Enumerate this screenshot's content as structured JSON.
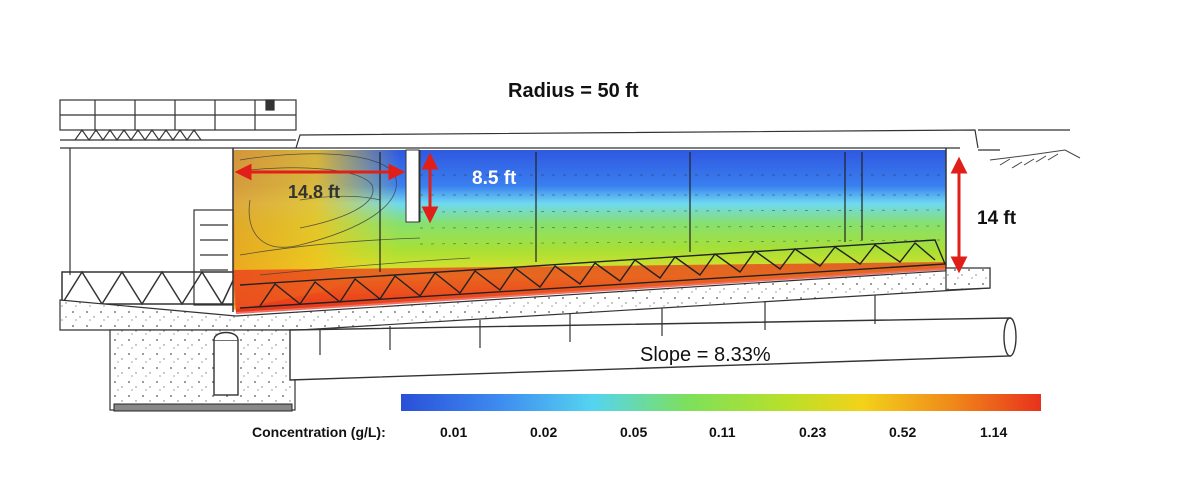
{
  "title": "Radius = 50 ft",
  "dimensions": {
    "width_label": "14.8 ft",
    "inlet_depth_label": "8.5 ft",
    "side_depth_label": "14 ft"
  },
  "slope_label": "Slope = 8.33%",
  "legend": {
    "title": "Concentration (g/L):",
    "ticks": [
      "0.01",
      "0.02",
      "0.05",
      "0.11",
      "0.23",
      "0.52",
      "1.14"
    ],
    "colors": [
      "#2a4fd8",
      "#3d8af0",
      "#55d4f0",
      "#7ee05a",
      "#b8e02a",
      "#f3d21a",
      "#f08a1a",
      "#e8321c"
    ]
  }
}
